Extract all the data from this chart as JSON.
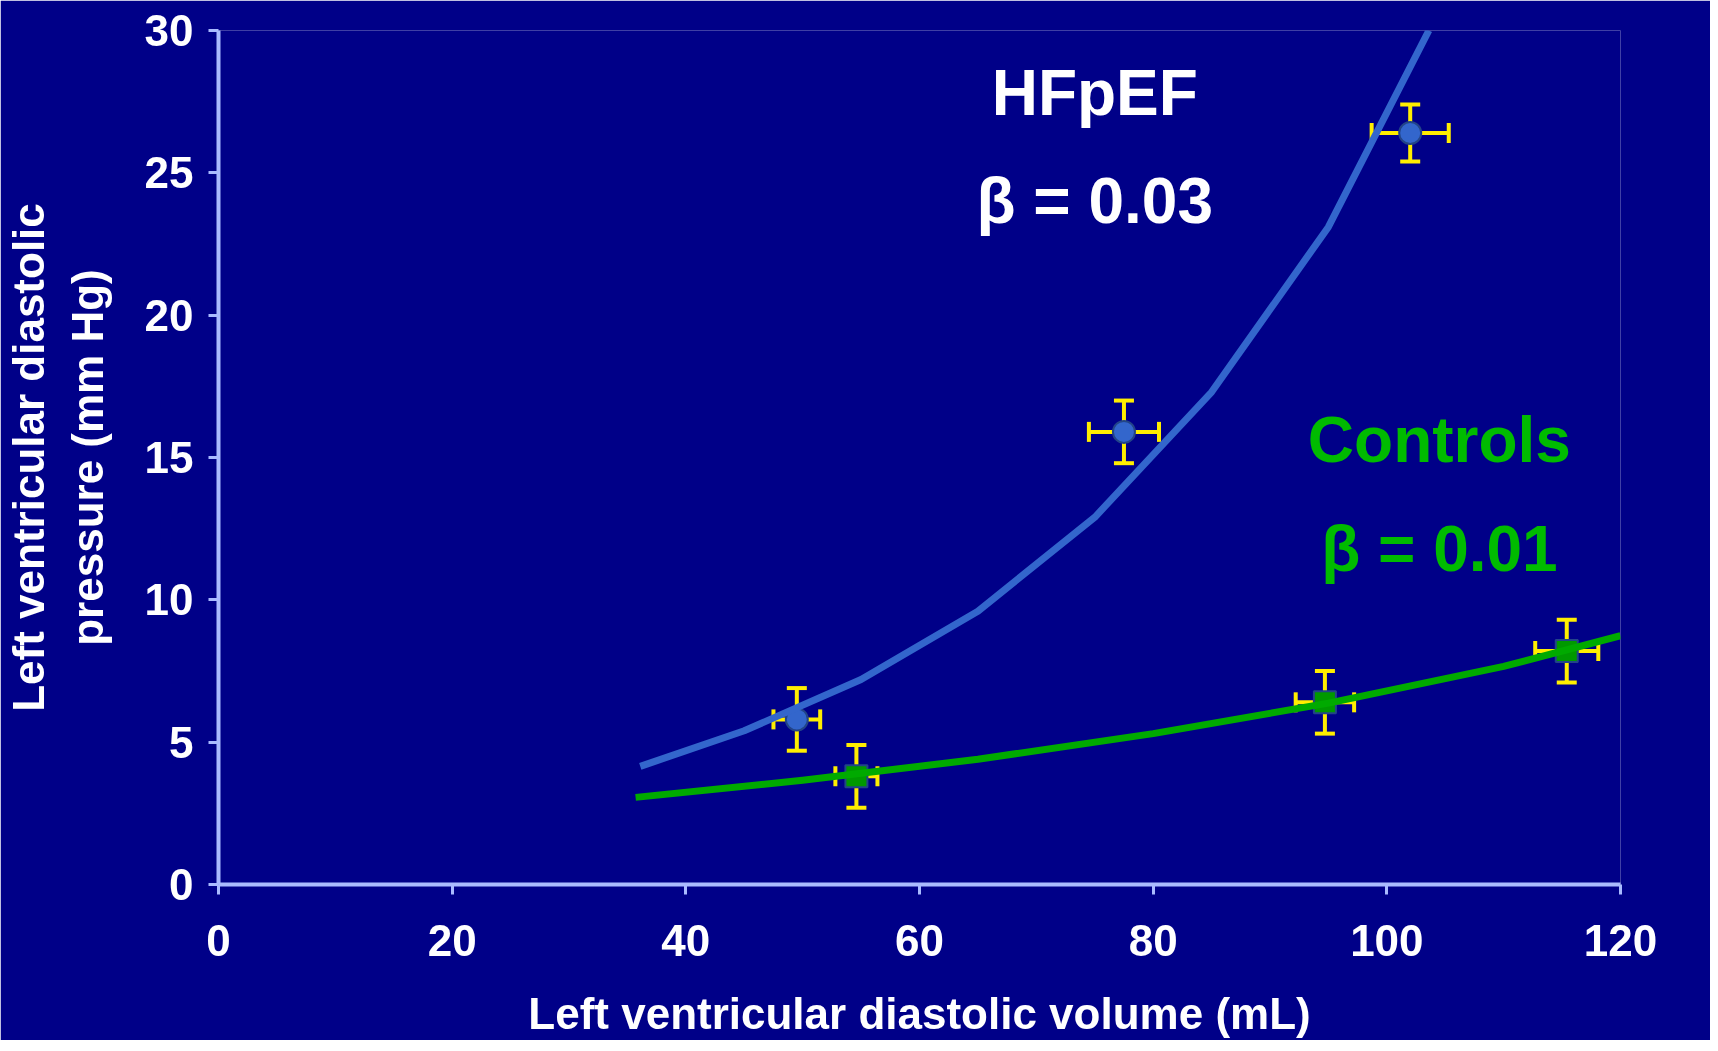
{
  "chart_data": {
    "type": "scatter",
    "xlabel": "Left ventricular diastolic volume (mL)",
    "ylabel": "Left ventricular diastolic\npressure (mm Hg)",
    "xlim": [
      0,
      120
    ],
    "xticks": [
      0,
      20,
      40,
      60,
      80,
      100,
      120
    ],
    "ylim": [
      0,
      30
    ],
    "yticks": [
      0,
      5,
      10,
      15,
      20,
      25,
      30
    ],
    "grid": false,
    "annotations": [
      "HFpEF",
      "β = 0.03",
      "β = 0.01"
    ],
    "series": [
      {
        "marker": "circle",
        "color": "#3366cc",
        "x": [
          49.5,
          77.5,
          102
        ],
        "values": [
          5.8,
          15.9,
          26.4
        ],
        "errors": [
          1.1,
          1.1,
          1
        ],
        "xerrors": [
          2,
          3,
          3.3
        ]
      },
      {
        "type": "line",
        "color": "#3366cc",
        "x": [
          36.1,
          45,
          55,
          65,
          75,
          85,
          95,
          103.6
        ],
        "values": [
          4.15,
          5.4,
          7.2,
          9.6,
          12.9,
          17.3,
          23.1,
          30
        ]
      },
      {
        "name": "Controls",
        "marker": "square",
        "color": "#009900",
        "x": [
          54.6,
          94.7,
          115.4
        ],
        "values": [
          3.8,
          6.4,
          8.2
        ],
        "errors": [
          1.1,
          1.1,
          1.1
        ],
        "xerrors": [
          1.8,
          2.5,
          2.7
        ]
      },
      {
        "type": "line",
        "color": "#00aa00",
        "x": [
          35.7,
          50,
          65,
          80,
          95,
          110,
          120
        ],
        "values": [
          3.06,
          3.66,
          4.4,
          5.3,
          6.37,
          7.66,
          8.74
        ]
      }
    ]
  }
}
